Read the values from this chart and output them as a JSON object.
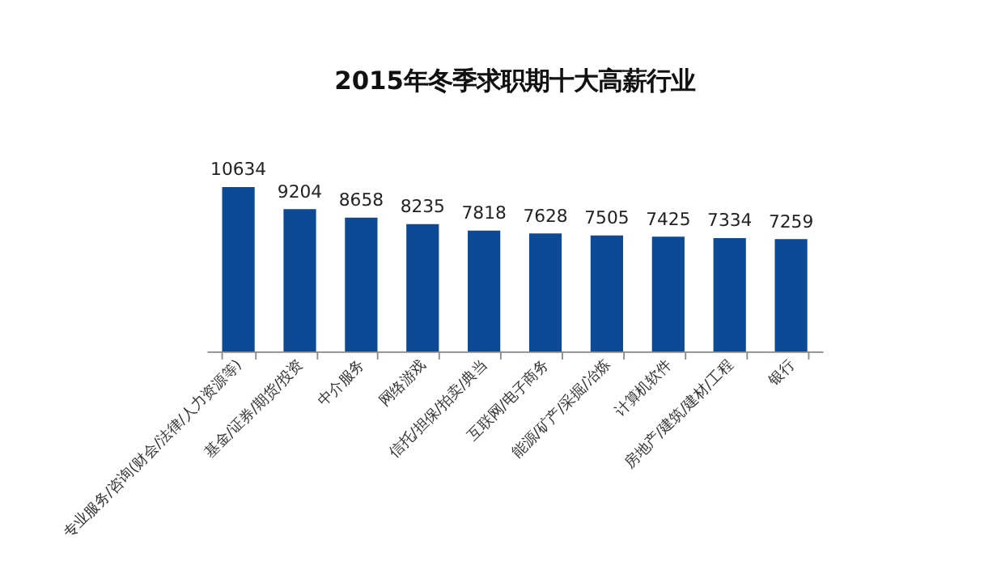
{
  "chart_data": {
    "type": "bar",
    "title": "2015年冬季求职期十大高薪行业",
    "categories": [
      "专业服务/咨询(财会/法律/人力资源等)",
      "基金/证券/期货/投资",
      "中介服务",
      "网络游戏",
      "信托/担保/拍卖/典当",
      "互联网/电子商务",
      "能源/矿产/采掘/冶炼",
      "计算机软件",
      "房地产/建筑/建材/工程",
      "银行"
    ],
    "values": [
      10634,
      9204,
      8658,
      8235,
      7818,
      7628,
      7505,
      7425,
      7334,
      7259
    ],
    "color": "#0d4a96",
    "data_labels": true,
    "tick_labels": "x"
  }
}
